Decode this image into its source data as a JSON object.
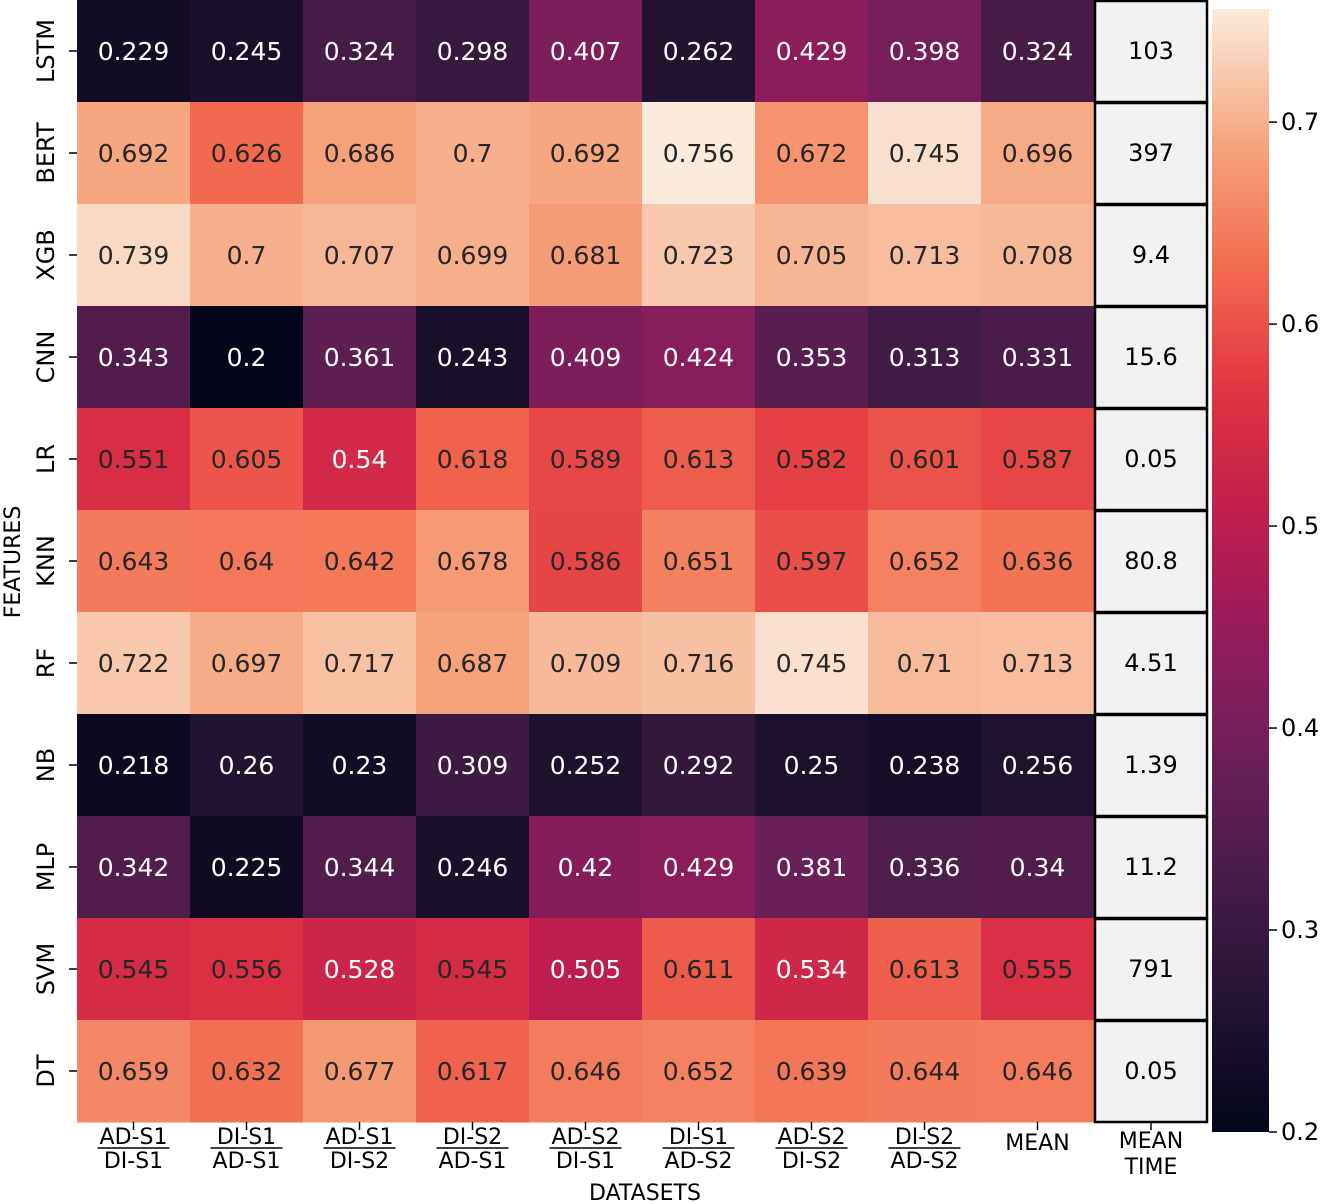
{
  "chart_data": {
    "type": "heatmap",
    "xlabel": "DATASETS",
    "ylabel": "FEATURES",
    "rows": [
      "LSTM",
      "BERT",
      "XGB",
      "CNN",
      "LR",
      "KNN",
      "RF",
      "NB",
      "MLP",
      "SVM",
      "DT"
    ],
    "columns": [
      {
        "top": "AD-S1",
        "bottom": "DI-S1"
      },
      {
        "top": "DI-S1",
        "bottom": "AD-S1"
      },
      {
        "top": "AD-S1",
        "bottom": "DI-S2"
      },
      {
        "top": "DI-S2",
        "bottom": "AD-S1"
      },
      {
        "top": "AD-S2",
        "bottom": "DI-S1"
      },
      {
        "top": "DI-S1",
        "bottom": "AD-S2"
      },
      {
        "top": "AD-S2",
        "bottom": "DI-S2"
      },
      {
        "top": "DI-S2",
        "bottom": "AD-S2"
      },
      {
        "top": "MEAN",
        "bottom": ""
      }
    ],
    "values": [
      [
        "0.229",
        "0.245",
        "0.324",
        "0.298",
        "0.407",
        "0.262",
        "0.429",
        "0.398",
        "0.324"
      ],
      [
        "0.692",
        "0.626",
        "0.686",
        "0.7",
        "0.692",
        "0.756",
        "0.672",
        "0.745",
        "0.696"
      ],
      [
        "0.739",
        "0.7",
        "0.707",
        "0.699",
        "0.681",
        "0.723",
        "0.705",
        "0.713",
        "0.708"
      ],
      [
        "0.343",
        "0.2",
        "0.361",
        "0.243",
        "0.409",
        "0.424",
        "0.353",
        "0.313",
        "0.331"
      ],
      [
        "0.551",
        "0.605",
        "0.54",
        "0.618",
        "0.589",
        "0.613",
        "0.582",
        "0.601",
        "0.587"
      ],
      [
        "0.643",
        "0.64",
        "0.642",
        "0.678",
        "0.586",
        "0.651",
        "0.597",
        "0.652",
        "0.636"
      ],
      [
        "0.722",
        "0.697",
        "0.717",
        "0.687",
        "0.709",
        "0.716",
        "0.745",
        "0.71",
        "0.713"
      ],
      [
        "0.218",
        "0.26",
        "0.23",
        "0.309",
        "0.252",
        "0.292",
        "0.25",
        "0.238",
        "0.256"
      ],
      [
        "0.342",
        "0.225",
        "0.344",
        "0.246",
        "0.42",
        "0.429",
        "0.381",
        "0.336",
        "0.34"
      ],
      [
        "0.545",
        "0.556",
        "0.528",
        "0.545",
        "0.505",
        "0.611",
        "0.534",
        "0.613",
        "0.555"
      ],
      [
        "0.659",
        "0.632",
        "0.677",
        "0.617",
        "0.646",
        "0.652",
        "0.639",
        "0.644",
        "0.646"
      ]
    ],
    "time_column": {
      "label_top": "MEAN",
      "label_bottom": "TIME",
      "values": [
        "103",
        "397",
        "9.4",
        "15.6",
        "0.05",
        "80.8",
        "4.51",
        "1.39",
        "11.2",
        "791",
        "0.05"
      ]
    },
    "colorbar": {
      "vmin": 0.2,
      "vmax": 0.756,
      "ticks": [
        "0.2",
        "0.3",
        "0.4",
        "0.5",
        "0.6",
        "0.7"
      ],
      "colormap": "rocket"
    }
  }
}
